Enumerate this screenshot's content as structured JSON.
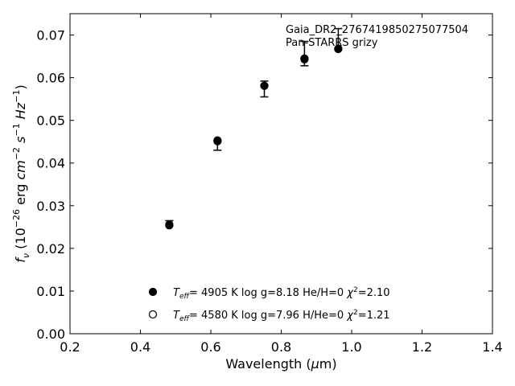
{
  "chart_data": {
    "type": "scatter",
    "title": "",
    "xlabel": "Wavelength (μm)",
    "ylabel": "f_ν (10^−26 erg cm^−2 s^−1 Hz^−1)",
    "xlim": [
      0.2,
      1.4
    ],
    "ylim": [
      0.0,
      0.075
    ],
    "xticks": [
      0.2,
      0.4,
      0.6,
      0.8,
      1.0,
      1.2,
      1.4
    ],
    "xtick_labels": [
      "0.2",
      "0.4",
      "0.6",
      "0.8",
      "1.0",
      "1.2",
      "1.4"
    ],
    "yticks": [
      0.0,
      0.01,
      0.02,
      0.03,
      0.04,
      0.05,
      0.06,
      0.07
    ],
    "ytick_labels": [
      "0.00",
      "0.01",
      "0.02",
      "0.03",
      "0.04",
      "0.05",
      "0.06",
      "0.07"
    ],
    "grid": false,
    "annotation": {
      "line1": "Gaia_DR2_2767419850275077504",
      "line2": "Pan-STARRS grizy"
    },
    "observed": {
      "x": [
        0.482,
        0.619,
        0.752,
        0.866,
        0.962
      ],
      "y": [
        0.0255,
        0.0451,
        0.0581,
        0.0644,
        0.0668
      ],
      "yerr_low": [
        0.0003,
        0.0021,
        0.0026,
        0.0016,
        0.0003
      ],
      "yerr_high": [
        0.001,
        0.0002,
        0.0011,
        0.0041,
        0.0047
      ]
    },
    "series": [
      {
        "marker": "filled-circle",
        "legend": {
          "teff": "4905 K",
          "logg": "log g=8.18",
          "comp": "He/H=0",
          "chi2": "2.10"
        },
        "x": [
          0.482,
          0.619,
          0.752,
          0.866,
          0.962
        ],
        "y": [
          0.0256,
          0.0453,
          0.0581,
          0.0645,
          0.0668
        ]
      },
      {
        "marker": "open-circle",
        "legend": {
          "teff": "4580 K",
          "logg": "log g=7.96",
          "comp": "H/He=0",
          "chi2": "1.21"
        },
        "x": [
          0.482,
          0.619,
          0.752,
          0.866,
          0.962
        ],
        "y": [
          0.0254,
          0.0451,
          0.0581,
          0.0643,
          0.0667
        ]
      }
    ]
  }
}
